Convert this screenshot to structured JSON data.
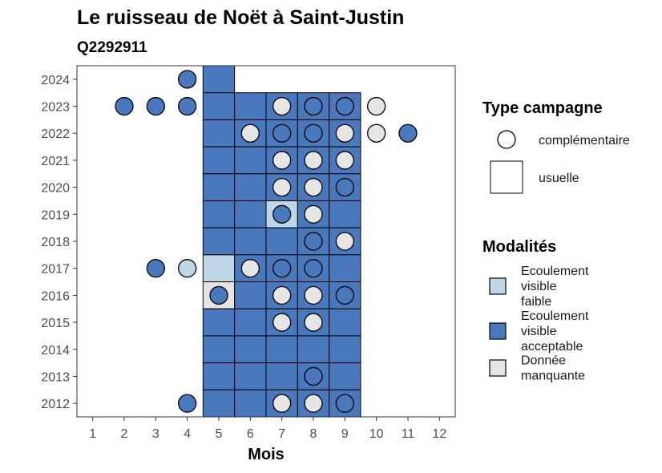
{
  "chart_data": {
    "type": "scatter",
    "title": "Le ruisseau de Noët à Saint-Justin",
    "subtitle": "Q2292911",
    "xlabel": "Mois",
    "ylabel": "",
    "x_ticks": [
      1,
      2,
      3,
      4,
      5,
      6,
      7,
      8,
      9,
      10,
      11,
      12
    ],
    "y_ticks": [
      2012,
      2013,
      2014,
      2015,
      2016,
      2017,
      2018,
      2019,
      2020,
      2021,
      2022,
      2023,
      2024
    ],
    "xlim": [
      0.5,
      12.5
    ],
    "ylim": [
      2011.5,
      2024.5
    ],
    "grid": false,
    "legend_placement": "right",
    "colors": {
      "Ecoulement visible faible": "#bdd7e7",
      "Ecoulement visible acceptable": "#4a78bc",
      "Donnée manquante": "#e5e5e5"
    },
    "usuelle": [
      {
        "year": 2024,
        "month": 5,
        "modalite": "Ecoulement visible acceptable"
      },
      {
        "year": 2023,
        "month": 5,
        "modalite": "Ecoulement visible acceptable"
      },
      {
        "year": 2023,
        "month": 6,
        "modalite": "Ecoulement visible acceptable"
      },
      {
        "year": 2023,
        "month": 7,
        "modalite": "Ecoulement visible acceptable"
      },
      {
        "year": 2023,
        "month": 8,
        "modalite": "Ecoulement visible acceptable"
      },
      {
        "year": 2023,
        "month": 9,
        "modalite": "Ecoulement visible acceptable"
      },
      {
        "year": 2022,
        "month": 5,
        "modalite": "Ecoulement visible acceptable"
      },
      {
        "year": 2022,
        "month": 6,
        "modalite": "Ecoulement visible acceptable"
      },
      {
        "year": 2022,
        "month": 7,
        "modalite": "Ecoulement visible acceptable"
      },
      {
        "year": 2022,
        "month": 8,
        "modalite": "Ecoulement visible acceptable"
      },
      {
        "year": 2022,
        "month": 9,
        "modalite": "Ecoulement visible acceptable"
      },
      {
        "year": 2021,
        "month": 5,
        "modalite": "Ecoulement visible acceptable"
      },
      {
        "year": 2021,
        "month": 6,
        "modalite": "Ecoulement visible acceptable"
      },
      {
        "year": 2021,
        "month": 7,
        "modalite": "Ecoulement visible acceptable"
      },
      {
        "year": 2021,
        "month": 8,
        "modalite": "Ecoulement visible acceptable"
      },
      {
        "year": 2021,
        "month": 9,
        "modalite": "Ecoulement visible acceptable"
      },
      {
        "year": 2020,
        "month": 5,
        "modalite": "Ecoulement visible acceptable"
      },
      {
        "year": 2020,
        "month": 6,
        "modalite": "Ecoulement visible acceptable"
      },
      {
        "year": 2020,
        "month": 7,
        "modalite": "Ecoulement visible acceptable"
      },
      {
        "year": 2020,
        "month": 8,
        "modalite": "Ecoulement visible acceptable"
      },
      {
        "year": 2020,
        "month": 9,
        "modalite": "Ecoulement visible acceptable"
      },
      {
        "year": 2019,
        "month": 5,
        "modalite": "Ecoulement visible acceptable"
      },
      {
        "year": 2019,
        "month": 6,
        "modalite": "Ecoulement visible acceptable"
      },
      {
        "year": 2019,
        "month": 7,
        "modalite": "Ecoulement visible faible"
      },
      {
        "year": 2019,
        "month": 8,
        "modalite": "Ecoulement visible acceptable"
      },
      {
        "year": 2019,
        "month": 9,
        "modalite": "Ecoulement visible acceptable"
      },
      {
        "year": 2018,
        "month": 5,
        "modalite": "Ecoulement visible acceptable"
      },
      {
        "year": 2018,
        "month": 6,
        "modalite": "Ecoulement visible acceptable"
      },
      {
        "year": 2018,
        "month": 7,
        "modalite": "Ecoulement visible acceptable"
      },
      {
        "year": 2018,
        "month": 8,
        "modalite": "Ecoulement visible acceptable"
      },
      {
        "year": 2018,
        "month": 9,
        "modalite": "Ecoulement visible acceptable"
      },
      {
        "year": 2017,
        "month": 5,
        "modalite": "Ecoulement visible faible"
      },
      {
        "year": 2017,
        "month": 6,
        "modalite": "Ecoulement visible acceptable"
      },
      {
        "year": 2017,
        "month": 7,
        "modalite": "Ecoulement visible acceptable"
      },
      {
        "year": 2017,
        "month": 8,
        "modalite": "Ecoulement visible acceptable"
      },
      {
        "year": 2017,
        "month": 9,
        "modalite": "Ecoulement visible acceptable"
      },
      {
        "year": 2016,
        "month": 5,
        "modalite": "Donnée manquante"
      },
      {
        "year": 2016,
        "month": 6,
        "modalite": "Ecoulement visible acceptable"
      },
      {
        "year": 2016,
        "month": 7,
        "modalite": "Ecoulement visible acceptable"
      },
      {
        "year": 2016,
        "month": 8,
        "modalite": "Ecoulement visible acceptable"
      },
      {
        "year": 2016,
        "month": 9,
        "modalite": "Ecoulement visible acceptable"
      },
      {
        "year": 2015,
        "month": 5,
        "modalite": "Ecoulement visible acceptable"
      },
      {
        "year": 2015,
        "month": 6,
        "modalite": "Ecoulement visible acceptable"
      },
      {
        "year": 2015,
        "month": 7,
        "modalite": "Ecoulement visible acceptable"
      },
      {
        "year": 2015,
        "month": 8,
        "modalite": "Ecoulement visible acceptable"
      },
      {
        "year": 2015,
        "month": 9,
        "modalite": "Ecoulement visible acceptable"
      },
      {
        "year": 2014,
        "month": 5,
        "modalite": "Ecoulement visible acceptable"
      },
      {
        "year": 2014,
        "month": 6,
        "modalite": "Ecoulement visible acceptable"
      },
      {
        "year": 2014,
        "month": 7,
        "modalite": "Ecoulement visible acceptable"
      },
      {
        "year": 2014,
        "month": 8,
        "modalite": "Ecoulement visible acceptable"
      },
      {
        "year": 2014,
        "month": 9,
        "modalite": "Ecoulement visible acceptable"
      },
      {
        "year": 2013,
        "month": 5,
        "modalite": "Ecoulement visible acceptable"
      },
      {
        "year": 2013,
        "month": 6,
        "modalite": "Ecoulement visible acceptable"
      },
      {
        "year": 2013,
        "month": 7,
        "modalite": "Ecoulement visible acceptable"
      },
      {
        "year": 2013,
        "month": 8,
        "modalite": "Ecoulement visible acceptable"
      },
      {
        "year": 2013,
        "month": 9,
        "modalite": "Ecoulement visible acceptable"
      },
      {
        "year": 2012,
        "month": 5,
        "modalite": "Ecoulement visible acceptable"
      },
      {
        "year": 2012,
        "month": 6,
        "modalite": "Ecoulement visible acceptable"
      },
      {
        "year": 2012,
        "month": 7,
        "modalite": "Ecoulement visible acceptable"
      },
      {
        "year": 2012,
        "month": 8,
        "modalite": "Ecoulement visible acceptable"
      },
      {
        "year": 2012,
        "month": 9,
        "modalite": "Ecoulement visible acceptable"
      }
    ],
    "complementaire": [
      {
        "year": 2024,
        "month": 4,
        "modalite": "Ecoulement visible acceptable"
      },
      {
        "year": 2023,
        "month": 2,
        "modalite": "Ecoulement visible acceptable"
      },
      {
        "year": 2023,
        "month": 3,
        "modalite": "Ecoulement visible acceptable"
      },
      {
        "year": 2023,
        "month": 4,
        "modalite": "Ecoulement visible acceptable"
      },
      {
        "year": 2023,
        "month": 7,
        "modalite": "Donnée manquante"
      },
      {
        "year": 2023,
        "month": 8,
        "modalite": "Ecoulement visible acceptable"
      },
      {
        "year": 2023,
        "month": 9,
        "modalite": "Ecoulement visible acceptable"
      },
      {
        "year": 2023,
        "month": 10,
        "modalite": "Donnée manquante"
      },
      {
        "year": 2022,
        "month": 6,
        "modalite": "Donnée manquante"
      },
      {
        "year": 2022,
        "month": 7,
        "modalite": "Ecoulement visible acceptable"
      },
      {
        "year": 2022,
        "month": 8,
        "modalite": "Ecoulement visible acceptable"
      },
      {
        "year": 2022,
        "month": 9,
        "modalite": "Donnée manquante"
      },
      {
        "year": 2022,
        "month": 10,
        "modalite": "Donnée manquante"
      },
      {
        "year": 2022,
        "month": 11,
        "modalite": "Ecoulement visible acceptable"
      },
      {
        "year": 2021,
        "month": 7,
        "modalite": "Donnée manquante"
      },
      {
        "year": 2021,
        "month": 8,
        "modalite": "Donnée manquante"
      },
      {
        "year": 2021,
        "month": 9,
        "modalite": "Donnée manquante"
      },
      {
        "year": 2020,
        "month": 7,
        "modalite": "Donnée manquante"
      },
      {
        "year": 2020,
        "month": 8,
        "modalite": "Donnée manquante"
      },
      {
        "year": 2020,
        "month": 9,
        "modalite": "Ecoulement visible acceptable"
      },
      {
        "year": 2019,
        "month": 7,
        "modalite": "Ecoulement visible acceptable"
      },
      {
        "year": 2019,
        "month": 8,
        "modalite": "Donnée manquante"
      },
      {
        "year": 2018,
        "month": 8,
        "modalite": "Ecoulement visible acceptable"
      },
      {
        "year": 2018,
        "month": 9,
        "modalite": "Donnée manquante"
      },
      {
        "year": 2017,
        "month": 3,
        "modalite": "Ecoulement visible acceptable"
      },
      {
        "year": 2017,
        "month": 4,
        "modalite": "Ecoulement visible faible"
      },
      {
        "year": 2017,
        "month": 6,
        "modalite": "Donnée manquante"
      },
      {
        "year": 2017,
        "month": 7,
        "modalite": "Ecoulement visible acceptable"
      },
      {
        "year": 2017,
        "month": 8,
        "modalite": "Ecoulement visible acceptable"
      },
      {
        "year": 2016,
        "month": 5,
        "modalite": "Ecoulement visible acceptable"
      },
      {
        "year": 2016,
        "month": 7,
        "modalite": "Donnée manquante"
      },
      {
        "year": 2016,
        "month": 8,
        "modalite": "Donnée manquante"
      },
      {
        "year": 2016,
        "month": 9,
        "modalite": "Ecoulement visible acceptable"
      },
      {
        "year": 2015,
        "month": 7,
        "modalite": "Donnée manquante"
      },
      {
        "year": 2015,
        "month": 8,
        "modalite": "Donnée manquante"
      },
      {
        "year": 2013,
        "month": 8,
        "modalite": "Ecoulement visible acceptable"
      },
      {
        "year": 2012,
        "month": 4,
        "modalite": "Ecoulement visible acceptable"
      },
      {
        "year": 2012,
        "month": 7,
        "modalite": "Donnée manquante"
      },
      {
        "year": 2012,
        "month": 8,
        "modalite": "Donnée manquante"
      },
      {
        "year": 2012,
        "month": 9,
        "modalite": "Ecoulement visible acceptable"
      }
    ],
    "legend": {
      "type_title": "Type campagne",
      "type_items": [
        {
          "label": "complémentaire",
          "shape": "circle"
        },
        {
          "label": "usuelle",
          "shape": "square"
        }
      ],
      "modalites_title": "Modalités",
      "modalites_items": [
        {
          "label_lines": [
            "Ecoulement",
            "visible",
            "faible"
          ],
          "color": "#bdd7e7"
        },
        {
          "label_lines": [
            "Ecoulement",
            "visible",
            "acceptable"
          ],
          "color": "#4a78bc"
        },
        {
          "label_lines": [
            "Donnée",
            "manquante"
          ],
          "color": "#e5e5e5"
        }
      ]
    }
  }
}
